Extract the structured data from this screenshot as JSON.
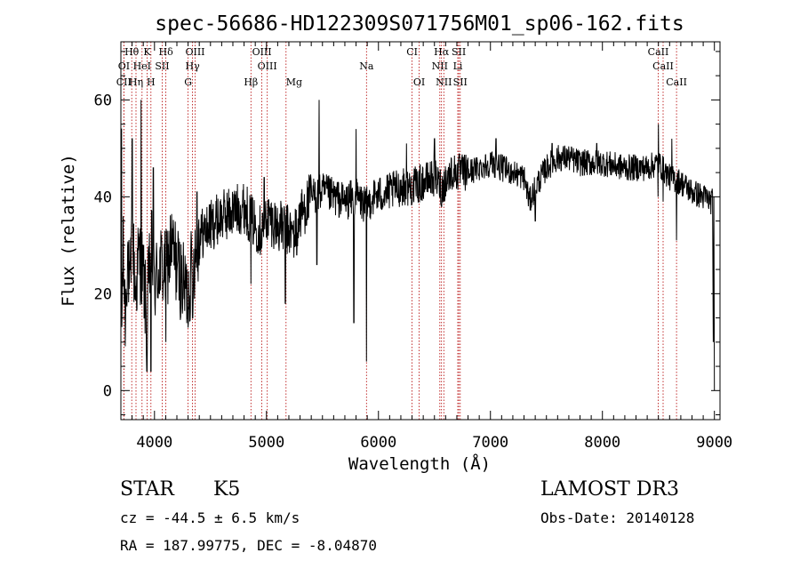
{
  "chart_data": {
    "type": "line",
    "title": "spec-56686-HD122309S071756M01_sp06-162.fits",
    "xlabel": "Wavelength (Å)",
    "ylabel": "Flux (relative)",
    "xlim": [
      3700,
      9050
    ],
    "ylim": [
      -6,
      72
    ],
    "xticks": [
      4000,
      5000,
      6000,
      7000,
      8000,
      9000
    ],
    "yticks": [
      0,
      20,
      40,
      60
    ],
    "grid": false,
    "line_color": "#b30000",
    "series_color": "#000000",
    "spectrum_control_points": [
      [
        3700,
        5
      ],
      [
        3720,
        28
      ],
      [
        3740,
        15
      ],
      [
        3760,
        30
      ],
      [
        3780,
        18
      ],
      [
        3800,
        33
      ],
      [
        3830,
        20
      ],
      [
        3860,
        28
      ],
      [
        3900,
        24
      ],
      [
        3930,
        15
      ],
      [
        3970,
        30
      ],
      [
        4000,
        22
      ],
      [
        4050,
        26
      ],
      [
        4100,
        24
      ],
      [
        4150,
        30
      ],
      [
        4200,
        26
      ],
      [
        4250,
        22
      ],
      [
        4300,
        20
      ],
      [
        4330,
        25
      ],
      [
        4400,
        32
      ],
      [
        4500,
        34
      ],
      [
        4600,
        36
      ],
      [
        4700,
        37
      ],
      [
        4800,
        38
      ],
      [
        4870,
        35
      ],
      [
        4950,
        33
      ],
      [
        5000,
        36
      ],
      [
        5100,
        34
      ],
      [
        5200,
        33
      ],
      [
        5250,
        32
      ],
      [
        5300,
        36
      ],
      [
        5400,
        40
      ],
      [
        5500,
        41
      ],
      [
        5600,
        40
      ],
      [
        5700,
        39
      ],
      [
        5800,
        40
      ],
      [
        5890,
        38
      ],
      [
        5950,
        40
      ],
      [
        6100,
        41
      ],
      [
        6200,
        42
      ],
      [
        6300,
        42
      ],
      [
        6400,
        43
      ],
      [
        6500,
        44
      ],
      [
        6563,
        42
      ],
      [
        6650,
        45
      ],
      [
        6800,
        45
      ],
      [
        7000,
        47
      ],
      [
        7200,
        45
      ],
      [
        7300,
        44
      ],
      [
        7350,
        39
      ],
      [
        7400,
        42
      ],
      [
        7500,
        46
      ],
      [
        7600,
        48
      ],
      [
        7700,
        48
      ],
      [
        7800,
        47
      ],
      [
        8000,
        47
      ],
      [
        8200,
        46
      ],
      [
        8400,
        46
      ],
      [
        8500,
        47
      ],
      [
        8600,
        44
      ],
      [
        8700,
        43
      ],
      [
        8800,
        41
      ],
      [
        8900,
        40
      ],
      [
        8980,
        39
      ]
    ],
    "spectrum_dips": [
      [
        3933,
        4
      ],
      [
        3968,
        4
      ],
      [
        4102,
        10
      ],
      [
        4300,
        13
      ],
      [
        4340,
        15
      ],
      [
        4861,
        22
      ],
      [
        5168,
        18
      ],
      [
        5270,
        28
      ],
      [
        5450,
        26
      ],
      [
        5780,
        14
      ],
      [
        5893,
        6
      ],
      [
        6563,
        38
      ],
      [
        7400,
        35
      ],
      [
        8498,
        40
      ],
      [
        8542,
        39
      ],
      [
        8662,
        31
      ]
    ],
    "spectrum_spikes": [
      [
        3705,
        54
      ],
      [
        3800,
        52
      ],
      [
        3880,
        60
      ],
      [
        3990,
        46
      ],
      [
        4380,
        41
      ],
      [
        4980,
        44
      ],
      [
        5470,
        60
      ],
      [
        5800,
        54
      ],
      [
        6250,
        51
      ],
      [
        6500,
        52
      ],
      [
        7050,
        52
      ],
      [
        7550,
        51
      ],
      [
        7950,
        51
      ],
      [
        8500,
        55
      ],
      [
        8620,
        52
      ],
      [
        8920,
        42
      ]
    ],
    "lines": [
      {
        "label": "Hθ",
        "wavelength": 3797,
        "row": 0,
        "anchor": "middle"
      },
      {
        "label": "K",
        "wavelength": 3934,
        "row": 0,
        "anchor": "middle"
      },
      {
        "label": "Hδ",
        "wavelength": 4102,
        "row": 0,
        "anchor": "middle"
      },
      {
        "label": "OIII",
        "wavelength": 4363,
        "row": 0,
        "anchor": "middle"
      },
      {
        "label": "OIII",
        "wavelength": 4959,
        "row": 0,
        "anchor": "middle"
      },
      {
        "label": "CI",
        "wavelength": 6300,
        "row": 0,
        "anchor": "middle"
      },
      {
        "label": "Hα",
        "wavelength": 6563,
        "row": 0,
        "anchor": "middle"
      },
      {
        "label": "SII",
        "wavelength": 6717,
        "row": 0,
        "anchor": "middle"
      },
      {
        "label": "CaII",
        "wavelength": 8498,
        "row": 0,
        "anchor": "middle"
      },
      {
        "label": "OI",
        "wavelength": 3727,
        "row": 1,
        "anchor": "middle"
      },
      {
        "label": "HeI",
        "wavelength": 3889,
        "row": 1,
        "anchor": "middle"
      },
      {
        "label": "SII",
        "wavelength": 4069,
        "row": 1,
        "anchor": "middle"
      },
      {
        "label": "Hγ",
        "wavelength": 4340,
        "row": 1,
        "anchor": "middle"
      },
      {
        "label": "OIII",
        "wavelength": 5007,
        "row": 1,
        "anchor": "middle"
      },
      {
        "label": "Na",
        "wavelength": 5893,
        "row": 1,
        "anchor": "middle"
      },
      {
        "label": "NII",
        "wavelength": 6548,
        "row": 1,
        "anchor": "middle"
      },
      {
        "label": "Li",
        "wavelength": 6708,
        "row": 1,
        "anchor": "middle"
      },
      {
        "label": "CaII",
        "wavelength": 8542,
        "row": 1,
        "anchor": "middle"
      },
      {
        "label": "CII",
        "wavelength": 3726,
        "row": 2,
        "anchor": "middle"
      },
      {
        "label": "Hη",
        "wavelength": 3835,
        "row": 2,
        "anchor": "middle"
      },
      {
        "label": "H",
        "wavelength": 3968,
        "row": 2,
        "anchor": "middle"
      },
      {
        "label": "G",
        "wavelength": 4300,
        "row": 2,
        "anchor": "middle"
      },
      {
        "label": "Hβ",
        "wavelength": 4861,
        "row": 2,
        "anchor": "middle"
      },
      {
        "label": "Mg",
        "wavelength": 5175,
        "row": 2,
        "anchor": "start"
      },
      {
        "label": "OI",
        "wavelength": 6363,
        "row": 2,
        "anchor": "middle"
      },
      {
        "label": "NII",
        "wavelength": 6584,
        "row": 2,
        "anchor": "middle"
      },
      {
        "label": "SII",
        "wavelength": 6731,
        "row": 2,
        "anchor": "middle"
      },
      {
        "label": "CaII",
        "wavelength": 8662,
        "row": 2,
        "anchor": "middle"
      }
    ]
  },
  "info": {
    "object_class": "STAR",
    "subclass": "K5",
    "survey": "LAMOST DR3",
    "redshift": "cz = -44.5 ± 6.5 km/s",
    "obs_date": "Obs-Date: 20140128",
    "coords": "RA = 187.99775, DEC =  -8.04870"
  }
}
